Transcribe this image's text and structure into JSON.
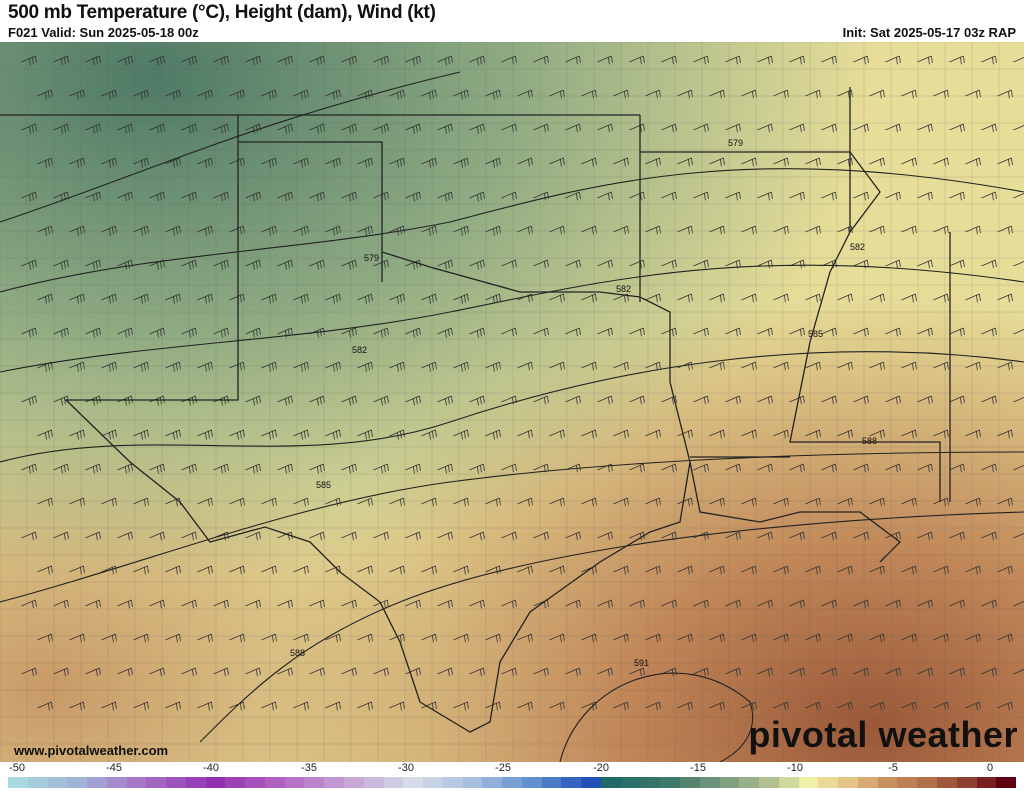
{
  "header": {
    "title": "500 mb Temperature (°C), Height (dam), Wind (kt)",
    "valid": "F021 Valid: Sun 2025-05-18 00z",
    "init": "Init: Sat 2025-05-17 03z RAP"
  },
  "footer": {
    "website": "www.pivotalweather.com",
    "logo": "pivotal weather"
  },
  "map": {
    "height_contour_labels": [
      "579",
      "579",
      "582",
      "582",
      "582",
      "585",
      "585",
      "588",
      "588",
      "591"
    ],
    "temperature_colors": {
      "cold": "#4f7a66",
      "mid": "#e9e39a",
      "warm": "#b06a45"
    }
  },
  "colorbar": {
    "tick_labels": [
      "-50",
      "-45",
      "-40",
      "-35",
      "-30",
      "-25",
      "-20",
      "-15",
      "-10",
      "-5",
      "0"
    ],
    "range": [
      -50,
      0
    ],
    "stops": [
      [
        -50,
        "#a8d8e0"
      ],
      [
        -47,
        "#a0b4d8"
      ],
      [
        -44,
        "#a878c8"
      ],
      [
        -40,
        "#9030b0"
      ],
      [
        -37,
        "#b060c0"
      ],
      [
        -33,
        "#c8a8d8"
      ],
      [
        -30,
        "#d4dce8"
      ],
      [
        -27,
        "#a8c0e0"
      ],
      [
        -24,
        "#6090d0"
      ],
      [
        -21,
        "#2050b8"
      ],
      [
        -20,
        "#206a68"
      ],
      [
        -17,
        "#40786a"
      ],
      [
        -14,
        "#80a080"
      ],
      [
        -12,
        "#b0c090"
      ],
      [
        -10,
        "#f2f0a8"
      ],
      [
        -8,
        "#e4c484"
      ],
      [
        -6,
        "#c89060"
      ],
      [
        -4,
        "#b07048"
      ],
      [
        -2,
        "#904030"
      ],
      [
        0,
        "#600010"
      ]
    ]
  }
}
